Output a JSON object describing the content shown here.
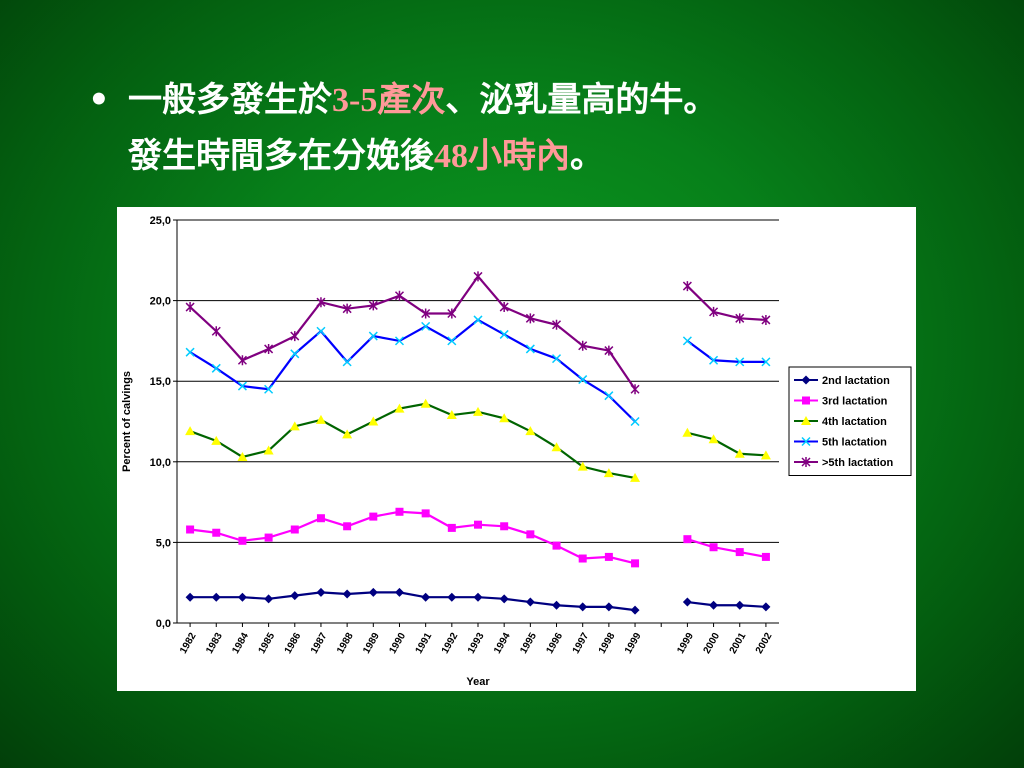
{
  "slide": {
    "bullet_symbol": "•",
    "line1": {
      "part1": "一般多發生於",
      "hl1": "3-5",
      "hl2": "產次",
      "part2": "、泌乳量高的牛。"
    },
    "line2": {
      "part1": "發生時間多在分娩後",
      "hl1": "48",
      "hl2": "小時內",
      "part2": "。"
    },
    "text_color": "#ffffff",
    "highlight_color": "#ff9999"
  },
  "chart_data": {
    "type": "line",
    "xlabel": "Year",
    "ylabel": "Percent of calvings",
    "ylim": [
      0,
      25
    ],
    "y_ticks": [
      "0,0",
      "5,0",
      "10,0",
      "15,0",
      "20,0",
      "25,0"
    ],
    "grid": "horizontal",
    "legend_position": "right",
    "categories": [
      "1982",
      "1983",
      "1984",
      "1985",
      "1986",
      "1987",
      "1988",
      "1989",
      "1990",
      "1991",
      "1992",
      "1993",
      "1994",
      "1995",
      "1996",
      "1997",
      "1998",
      "1999",
      "",
      "1999",
      "2000",
      "2001",
      "2002"
    ],
    "series": [
      {
        "name": "2nd lactation",
        "color": "#000080",
        "marker": "diamond",
        "values": [
          1.6,
          1.6,
          1.6,
          1.5,
          1.7,
          1.9,
          1.8,
          1.9,
          1.9,
          1.6,
          1.6,
          1.6,
          1.5,
          1.3,
          1.1,
          1.0,
          1.0,
          0.8,
          null,
          1.3,
          1.1,
          1.1,
          1.0
        ]
      },
      {
        "name": "3rd lactation",
        "color": "#ff00ff",
        "marker": "square",
        "values": [
          5.8,
          5.6,
          5.1,
          5.3,
          5.8,
          6.5,
          6.0,
          6.6,
          6.9,
          6.8,
          5.9,
          6.1,
          6.0,
          5.5,
          4.8,
          4.0,
          4.1,
          3.7,
          null,
          5.2,
          4.7,
          4.4,
          4.1
        ]
      },
      {
        "name": "4th lactation",
        "color": "#ffff00",
        "line_color": "#006400",
        "marker": "triangle",
        "values": [
          11.9,
          11.3,
          10.3,
          10.7,
          12.2,
          12.6,
          11.7,
          12.5,
          13.3,
          13.6,
          12.9,
          13.1,
          12.7,
          11.9,
          10.9,
          9.7,
          9.3,
          9.0,
          null,
          11.8,
          11.4,
          10.5,
          10.4
        ]
      },
      {
        "name": "5th lactation",
        "color": "#00ccff",
        "line_color": "#0000ff",
        "marker": "x",
        "values": [
          16.8,
          15.8,
          14.7,
          14.5,
          16.7,
          18.1,
          16.2,
          17.8,
          17.5,
          18.4,
          17.5,
          18.8,
          17.9,
          17.0,
          16.4,
          15.1,
          14.1,
          12.5,
          null,
          17.5,
          16.3,
          16.2,
          16.2
        ]
      },
      {
        "name": ">5th lactation",
        "color": "#800080",
        "marker": "star",
        "values": [
          19.6,
          18.1,
          16.3,
          17.0,
          17.8,
          19.9,
          19.5,
          19.7,
          20.3,
          19.2,
          19.2,
          21.5,
          19.6,
          18.9,
          18.5,
          17.2,
          16.9,
          14.5,
          null,
          20.9,
          19.3,
          18.9,
          18.8
        ]
      }
    ]
  }
}
